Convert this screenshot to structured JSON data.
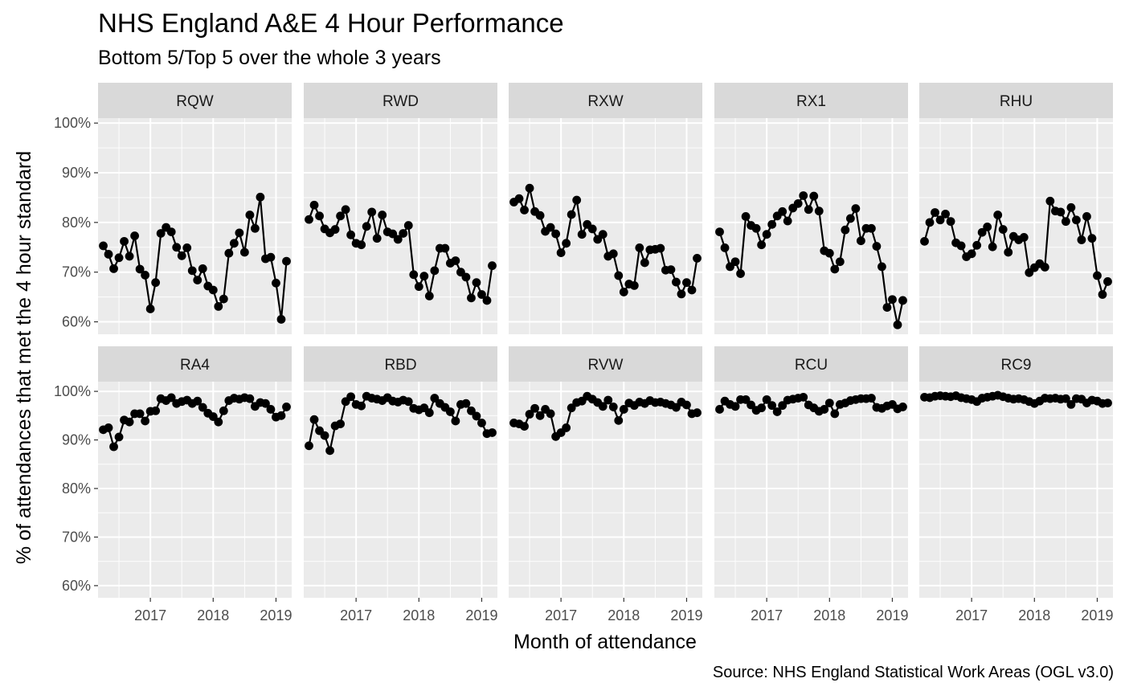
{
  "chart_data": {
    "type": "line",
    "title": "NHS England A&E 4 Hour Performance",
    "subtitle": "Bottom 5/Top 5 over the whole 3 years",
    "xlabel": "Month of attendance",
    "ylabel": "% of attendances that met the 4 hour standard",
    "caption": "Source: NHS England Statistical Work Areas (OGL v3.0)",
    "x_ticks": [
      "2017",
      "2018",
      "2019"
    ],
    "x_tick_values": [
      "2017-01",
      "2018-01",
      "2019-01"
    ],
    "y_ticks": [
      "60%",
      "70%",
      "80%",
      "90%",
      "100%"
    ],
    "y_tick_values": [
      60,
      70,
      80,
      90,
      100
    ],
    "xlim": [
      "2016-03",
      "2019-04"
    ],
    "ylim_top_row": [
      57.5,
      101
    ],
    "ylim_bottom_row": [
      57.5,
      102
    ],
    "grid": true,
    "line_color": "#000000",
    "panel_background": "#ebebeb",
    "strip_background": "#d9d9d9",
    "grid_color": "#ffffff",
    "months": [
      "2016-04",
      "2016-05",
      "2016-06",
      "2016-07",
      "2016-08",
      "2016-09",
      "2016-10",
      "2016-11",
      "2016-12",
      "2017-01",
      "2017-02",
      "2017-03",
      "2017-04",
      "2017-05",
      "2017-06",
      "2017-07",
      "2017-08",
      "2017-09",
      "2017-10",
      "2017-11",
      "2017-12",
      "2018-01",
      "2018-02",
      "2018-03",
      "2018-04",
      "2018-05",
      "2018-06",
      "2018-07",
      "2018-08",
      "2018-09",
      "2018-10",
      "2018-11",
      "2018-12",
      "2019-01",
      "2019-02",
      "2019-03"
    ],
    "panels": [
      {
        "name": "RQW",
        "row": 1,
        "values": [
          75.3,
          73.6,
          70.7,
          72.9,
          76.2,
          73.2,
          77.3,
          70.6,
          69.4,
          62.6,
          67.9,
          77.8,
          79.0,
          78.1,
          75.0,
          73.3,
          74.9,
          70.3,
          68.4,
          70.7,
          67.2,
          66.4,
          63.1,
          64.6,
          73.8,
          75.8,
          77.9,
          74.0,
          81.5,
          78.8,
          85.1,
          72.7,
          73.0,
          67.8,
          60.5,
          72.2
        ]
      },
      {
        "name": "RWD",
        "row": 1,
        "values": [
          80.6,
          83.5,
          81.3,
          78.7,
          77.9,
          78.6,
          81.3,
          82.6,
          77.5,
          75.8,
          75.5,
          79.2,
          82.1,
          76.8,
          81.5,
          78.1,
          77.7,
          76.6,
          77.8,
          79.4,
          69.5,
          67.1,
          69.2,
          65.2,
          70.3,
          74.8,
          74.8,
          71.8,
          72.3,
          70.0,
          69.0,
          64.8,
          67.9,
          65.5,
          64.3,
          71.3
        ]
      },
      {
        "name": "RXW",
        "row": 1,
        "values": [
          84.1,
          84.8,
          82.5,
          86.9,
          82.2,
          81.4,
          78.2,
          79.0,
          77.7,
          73.9,
          75.8,
          81.6,
          84.5,
          77.6,
          79.6,
          78.7,
          76.6,
          77.6,
          73.2,
          73.7,
          69.3,
          66.0,
          67.6,
          67.3,
          74.9,
          71.9,
          74.5,
          74.6,
          74.8,
          70.4,
          70.5,
          68.0,
          65.6,
          67.9,
          66.4,
          72.8
        ]
      },
      {
        "name": "RX1",
        "row": 1,
        "values": [
          78.1,
          74.9,
          71.1,
          72.1,
          69.7,
          81.2,
          79.4,
          78.8,
          75.5,
          77.6,
          79.6,
          81.3,
          82.2,
          80.3,
          82.9,
          83.8,
          85.4,
          82.6,
          85.3,
          82.3,
          74.3,
          73.8,
          70.6,
          72.1,
          78.5,
          80.8,
          82.8,
          76.3,
          78.8,
          78.8,
          75.2,
          71.1,
          62.9,
          64.5,
          59.4,
          64.3
        ]
      },
      {
        "name": "RHU",
        "row": 1,
        "values": [
          76.2,
          80.0,
          82.0,
          80.5,
          81.7,
          80.2,
          75.9,
          75.3,
          73.1,
          73.7,
          75.4,
          78.0,
          79.1,
          75.1,
          81.5,
          78.6,
          74.0,
          77.2,
          76.5,
          77.0,
          69.9,
          70.9,
          71.7,
          71.0,
          84.3,
          82.3,
          82.1,
          80.2,
          83.0,
          80.5,
          76.5,
          81.2,
          76.8,
          69.3,
          65.5,
          68.1
        ]
      },
      {
        "name": "RA4",
        "row": 2,
        "values": [
          92.1,
          92.5,
          88.6,
          90.6,
          94.1,
          93.7,
          95.4,
          95.4,
          93.9,
          95.9,
          96.0,
          98.5,
          98.1,
          98.7,
          97.5,
          97.9,
          98.2,
          97.5,
          98.0,
          96.7,
          95.5,
          94.8,
          93.7,
          96.0,
          98.1,
          98.6,
          98.4,
          98.7,
          98.5,
          96.9,
          97.7,
          97.5,
          96.3,
          94.7,
          95.0,
          96.8
        ]
      },
      {
        "name": "RBD",
        "row": 2,
        "values": [
          88.8,
          94.2,
          91.9,
          90.9,
          87.8,
          92.9,
          93.3,
          97.9,
          98.9,
          97.3,
          97.0,
          99.0,
          98.6,
          98.4,
          98.1,
          98.7,
          98.0,
          97.8,
          98.2,
          97.9,
          96.5,
          96.2,
          96.6,
          95.6,
          98.6,
          97.5,
          96.7,
          95.8,
          93.9,
          97.3,
          97.5,
          96.0,
          94.9,
          93.5,
          91.3,
          91.5
        ]
      },
      {
        "name": "RVW",
        "row": 2,
        "values": [
          93.5,
          93.3,
          92.8,
          95.3,
          96.5,
          95.0,
          96.3,
          95.4,
          90.7,
          91.5,
          92.5,
          96.6,
          97.7,
          98.0,
          99.0,
          98.4,
          97.7,
          96.9,
          98.2,
          96.8,
          94.0,
          96.3,
          97.6,
          97.1,
          97.8,
          97.5,
          98.1,
          97.7,
          97.8,
          97.5,
          97.2,
          96.7,
          97.8,
          97.2,
          95.4,
          95.6
        ]
      },
      {
        "name": "RCU",
        "row": 2,
        "values": [
          96.3,
          98.0,
          97.3,
          96.9,
          98.3,
          98.3,
          97.2,
          96.1,
          96.6,
          98.3,
          97.1,
          95.8,
          97.1,
          98.2,
          98.4,
          98.6,
          98.8,
          97.2,
          96.6,
          95.9,
          96.3,
          97.6,
          95.4,
          97.3,
          97.6,
          98.1,
          98.3,
          98.5,
          98.5,
          98.6,
          96.7,
          96.5,
          97.0,
          97.3,
          96.4,
          96.8
        ]
      },
      {
        "name": "RC9",
        "row": 2,
        "values": [
          98.8,
          98.7,
          99.0,
          99.1,
          99.0,
          98.9,
          99.1,
          98.7,
          98.5,
          98.3,
          97.9,
          98.6,
          98.8,
          99.0,
          99.2,
          98.9,
          98.6,
          98.4,
          98.5,
          98.3,
          97.9,
          97.5,
          98.0,
          98.6,
          98.5,
          98.6,
          98.4,
          98.5,
          97.3,
          98.5,
          98.4,
          97.6,
          98.2,
          98.0,
          97.5,
          97.6
        ]
      }
    ]
  }
}
